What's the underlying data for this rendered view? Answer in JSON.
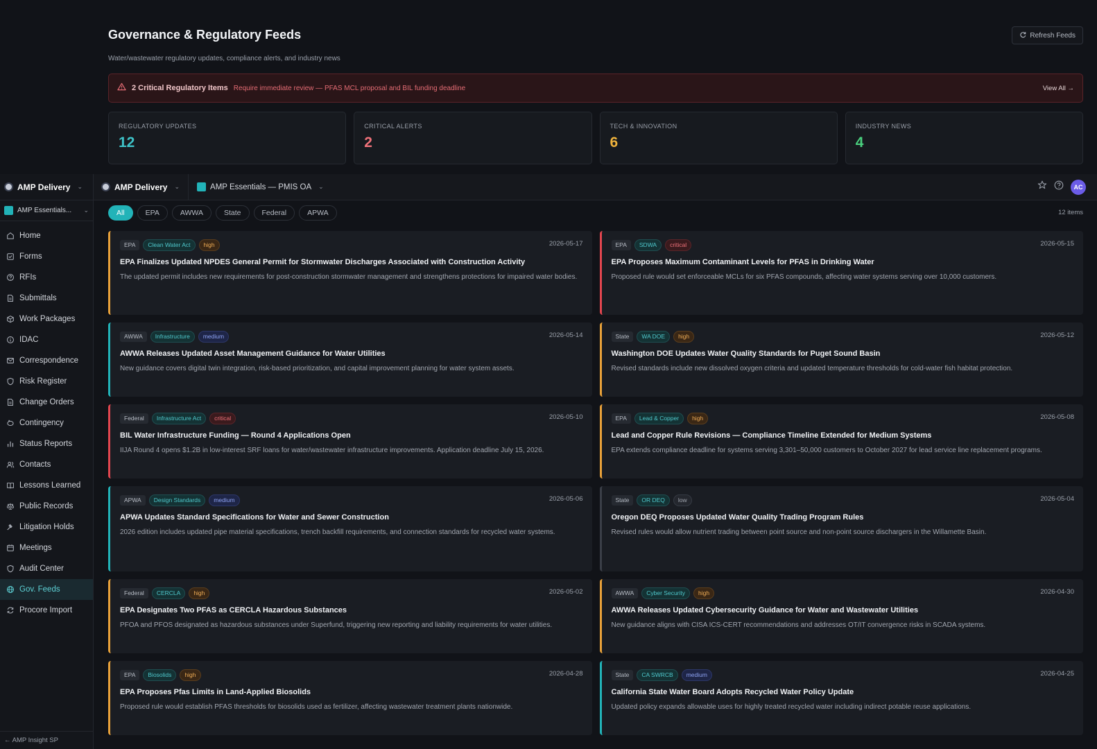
{
  "header": {
    "title": "Governance & Regulatory Feeds",
    "subtitle": "Water/wastewater regulatory updates, compliance alerts, and industry news",
    "refresh_label": "Refresh Feeds"
  },
  "alert": {
    "title": "2 Critical Regulatory Items",
    "description": "Require immediate review — PFAS MCL proposal and BIL funding deadline",
    "view_all": "View All →"
  },
  "stats": [
    {
      "label": "REGULATORY UPDATES",
      "value": "12",
      "color": "#3ec3c8"
    },
    {
      "label": "CRITICAL ALERTS",
      "value": "2",
      "color": "#f0727a"
    },
    {
      "label": "TECH & INNOVATION",
      "value": "6",
      "color": "#f0b33c"
    },
    {
      "label": "INDUSTRY NEWS",
      "value": "4",
      "color": "#4ad07e"
    }
  ],
  "sidebar": {
    "org": "AMP Delivery",
    "project": "AMP Essentials...",
    "items": [
      {
        "label": "Home",
        "icon": "home-icon"
      },
      {
        "label": "Forms",
        "icon": "forms-icon"
      },
      {
        "label": "RFIs",
        "icon": "question-icon"
      },
      {
        "label": "Submittals",
        "icon": "document-icon"
      },
      {
        "label": "Work Packages",
        "icon": "package-icon"
      },
      {
        "label": "IDAC",
        "icon": "info-icon"
      },
      {
        "label": "Correspondence",
        "icon": "mail-icon"
      },
      {
        "label": "Risk Register",
        "icon": "shield-icon"
      },
      {
        "label": "Change Orders",
        "icon": "document-icon"
      },
      {
        "label": "Contingency",
        "icon": "piggy-icon"
      },
      {
        "label": "Status Reports",
        "icon": "bar-chart-icon"
      },
      {
        "label": "Contacts",
        "icon": "users-icon"
      },
      {
        "label": "Lessons Learned",
        "icon": "book-icon"
      },
      {
        "label": "Public Records",
        "icon": "scale-icon"
      },
      {
        "label": "Litigation Holds",
        "icon": "gavel-icon"
      },
      {
        "label": "Meetings",
        "icon": "calendar-icon"
      },
      {
        "label": "Audit Center",
        "icon": "shield-icon"
      },
      {
        "label": "Gov. Feeds",
        "icon": "globe-icon",
        "active": true
      },
      {
        "label": "Procore Import",
        "icon": "refresh-icon"
      }
    ],
    "footer": "← AMP Insight SP"
  },
  "topbar": {
    "org": "AMP Delivery",
    "project": "AMP Essentials — PMIS OA",
    "avatar": "AC"
  },
  "filters": [
    "All",
    "EPA",
    "AWWA",
    "State",
    "Federal",
    "APWA"
  ],
  "active_filter": "All",
  "item_count": "12 items",
  "feeds": [
    {
      "source": "EPA",
      "tag": "Clean Water Act",
      "severity": "high",
      "date": "2026-05-17",
      "title": "EPA Finalizes Updated NPDES General Permit for Stormwater Discharges Associated with Construction Activity",
      "description": "The updated permit includes new requirements for post-construction stormwater management and strengthens protections for impaired water bodies."
    },
    {
      "source": "EPA",
      "tag": "SDWA",
      "severity": "critical",
      "date": "2026-05-15",
      "title": "EPA Proposes Maximum Contaminant Levels for PFAS in Drinking Water",
      "description": "Proposed rule would set enforceable MCLs for six PFAS compounds, affecting water systems serving over 10,000 customers."
    },
    {
      "source": "AWWA",
      "tag": "Infrastructure",
      "severity": "medium",
      "date": "2026-05-14",
      "title": "AWWA Releases Updated Asset Management Guidance for Water Utilities",
      "description": "New guidance covers digital twin integration, risk-based prioritization, and capital improvement planning for water system assets."
    },
    {
      "source": "State",
      "tag": "WA DOE",
      "severity": "high",
      "date": "2026-05-12",
      "title": "Washington DOE Updates Water Quality Standards for Puget Sound Basin",
      "description": "Revised standards include new dissolved oxygen criteria and updated temperature thresholds for cold-water fish habitat protection."
    },
    {
      "source": "Federal",
      "tag": "Infrastructure Act",
      "severity": "critical",
      "date": "2026-05-10",
      "title": "BIL Water Infrastructure Funding — Round 4 Applications Open",
      "description": "IIJA Round 4 opens $1.2B in low-interest SRF loans for water/wastewater infrastructure improvements. Application deadline July 15, 2026."
    },
    {
      "source": "EPA",
      "tag": "Lead & Copper",
      "severity": "high",
      "date": "2026-05-08",
      "title": "Lead and Copper Rule Revisions — Compliance Timeline Extended for Medium Systems",
      "description": "EPA extends compliance deadline for systems serving 3,301–50,000 customers to October 2027 for lead service line replacement programs."
    },
    {
      "source": "APWA",
      "tag": "Design Standards",
      "severity": "medium",
      "date": "2026-05-06",
      "title": "APWA Updates Standard Specifications for Water and Sewer Construction",
      "description": "2026 edition includes updated pipe material specifications, trench backfill requirements, and connection standards for recycled water systems."
    },
    {
      "source": "State",
      "tag": "OR DEQ",
      "severity": "low",
      "date": "2026-05-04",
      "title": "Oregon DEQ Proposes Updated Water Quality Trading Program Rules",
      "description": "Revised rules would allow nutrient trading between point source and non-point source dischargers in the Willamette Basin."
    },
    {
      "source": "Federal",
      "tag": "CERCLA",
      "severity": "high",
      "date": "2026-05-02",
      "title": "EPA Designates Two PFAS as CERCLA Hazardous Substances",
      "description": "PFOA and PFOS designated as hazardous substances under Superfund, triggering new reporting and liability requirements for water utilities."
    },
    {
      "source": "AWWA",
      "tag": "Cyber Security",
      "severity": "high",
      "date": "2026-04-30",
      "title": "AWWA Releases Updated Cybersecurity Guidance for Water and Wastewater Utilities",
      "description": "New guidance aligns with CISA ICS-CERT recommendations and addresses OT/IT convergence risks in SCADA systems."
    },
    {
      "source": "EPA",
      "tag": "Biosolids",
      "severity": "high",
      "date": "2026-04-28",
      "title": "EPA Proposes Pfas Limits in Land-Applied Biosolids",
      "description": "Proposed rule would establish PFAS thresholds for biosolids used as fertilizer, affecting wastewater treatment plants nationwide."
    },
    {
      "source": "State",
      "tag": "CA SWRCB",
      "severity": "medium",
      "date": "2026-04-25",
      "title": "California State Water Board Adopts Recycled Water Policy Update",
      "description": "Updated policy expands allowable uses for highly treated recycled water including indirect potable reuse applications."
    }
  ]
}
